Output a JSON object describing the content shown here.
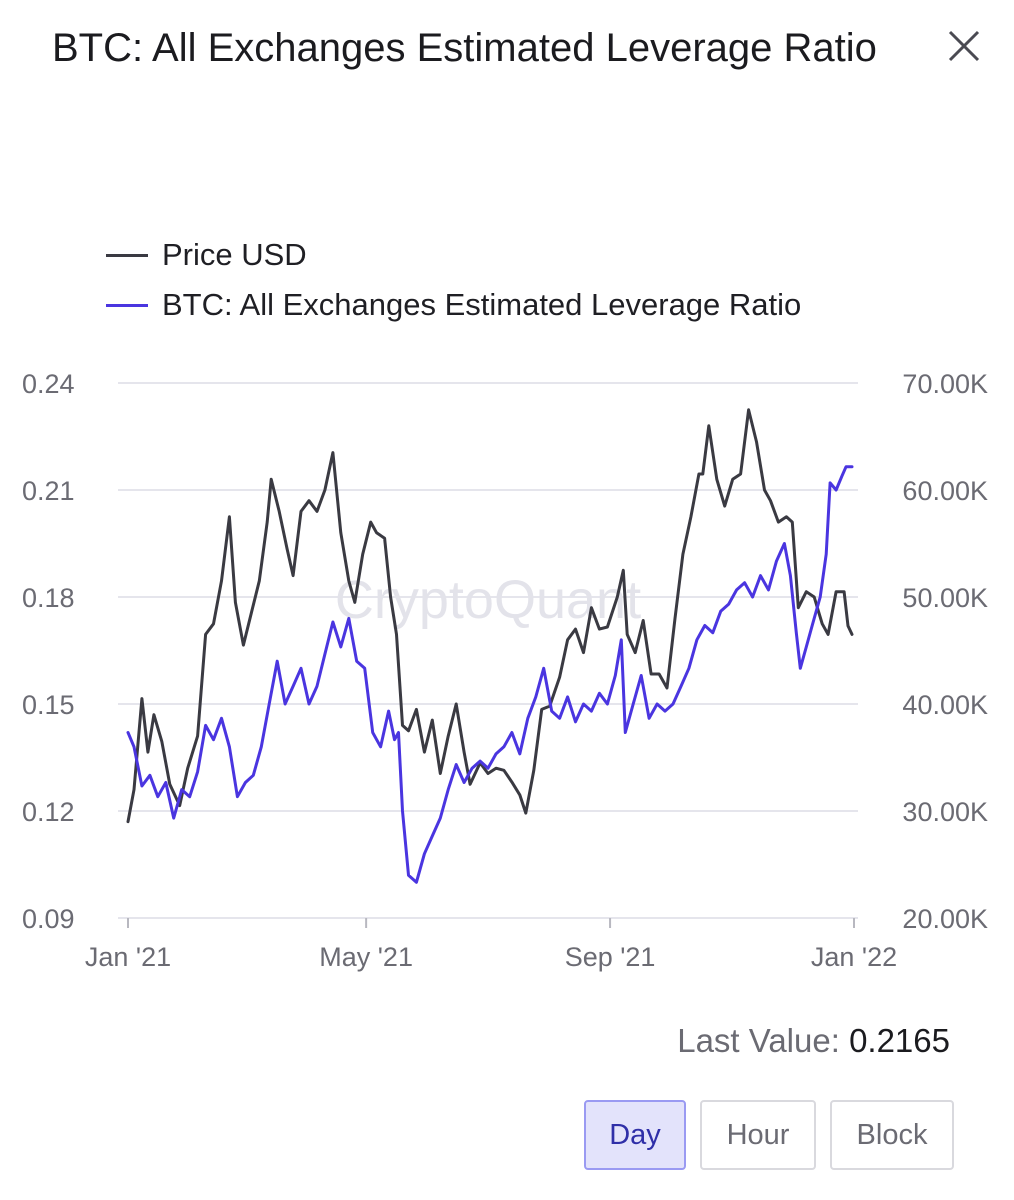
{
  "header": {
    "title": "BTC: All Exchanges Estimated Leverage Ratio",
    "close_icon": "close-icon"
  },
  "colors": {
    "price": "#3a3a42",
    "leverage": "#4a35e0",
    "grid": "#e5e5ec",
    "axis_text": "#6b6b73"
  },
  "legend": {
    "items": [
      {
        "label": "Price USD",
        "color": "#3a3a42"
      },
      {
        "label": "BTC: All Exchanges Estimated Leverage Ratio",
        "color": "#4a35e0"
      }
    ]
  },
  "watermark": "CryptoQuant",
  "chart_data": {
    "type": "line",
    "x_ticks": [
      "Jan '21",
      "May '21",
      "Sep '21",
      "Jan '22"
    ],
    "x_range": [
      "2021-01-01",
      "2022-01-01"
    ],
    "y_left": {
      "min": 0.09,
      "max": 0.24,
      "ticks": [
        "0.24",
        "0.21",
        "0.18",
        "0.15",
        "0.12",
        "0.09"
      ]
    },
    "y_right": {
      "min": 20000,
      "max": 70000,
      "ticks": [
        "70.00K",
        "60.00K",
        "50.00K",
        "40.00K",
        "30.00K",
        "20.00K"
      ]
    },
    "grid": true,
    "legend_position": "top-left",
    "series": [
      {
        "name": "Price USD",
        "axis": "right",
        "points": [
          [
            "2021-01-01",
            29000
          ],
          [
            "2021-01-04",
            32000
          ],
          [
            "2021-01-08",
            40500
          ],
          [
            "2021-01-11",
            35500
          ],
          [
            "2021-01-14",
            39000
          ],
          [
            "2021-01-18",
            36500
          ],
          [
            "2021-01-22",
            32500
          ],
          [
            "2021-01-27",
            30500
          ],
          [
            "2021-01-31",
            34000
          ],
          [
            "2021-02-05",
            37000
          ],
          [
            "2021-02-09",
            46500
          ],
          [
            "2021-02-13",
            47500
          ],
          [
            "2021-02-17",
            51500
          ],
          [
            "2021-02-21",
            57500
          ],
          [
            "2021-02-24",
            49500
          ],
          [
            "2021-02-28",
            45500
          ],
          [
            "2021-03-04",
            48500
          ],
          [
            "2021-03-08",
            51500
          ],
          [
            "2021-03-12",
            57000
          ],
          [
            "2021-03-14",
            61000
          ],
          [
            "2021-03-18",
            58000
          ],
          [
            "2021-03-22",
            54500
          ],
          [
            "2021-03-25",
            52000
          ],
          [
            "2021-03-29",
            58000
          ],
          [
            "2021-04-02",
            59000
          ],
          [
            "2021-04-06",
            58000
          ],
          [
            "2021-04-10",
            60000
          ],
          [
            "2021-04-14",
            63500
          ],
          [
            "2021-04-18",
            56000
          ],
          [
            "2021-04-22",
            51500
          ],
          [
            "2021-04-25",
            49500
          ],
          [
            "2021-04-29",
            54000
          ],
          [
            "2021-05-03",
            57000
          ],
          [
            "2021-05-06",
            56000
          ],
          [
            "2021-05-10",
            55500
          ],
          [
            "2021-05-13",
            50000
          ],
          [
            "2021-05-16",
            46500
          ],
          [
            "2021-05-19",
            38000
          ],
          [
            "2021-05-22",
            37500
          ],
          [
            "2021-05-26",
            39500
          ],
          [
            "2021-05-30",
            35500
          ],
          [
            "2021-06-03",
            38500
          ],
          [
            "2021-06-07",
            33500
          ],
          [
            "2021-06-11",
            37000
          ],
          [
            "2021-06-15",
            40000
          ],
          [
            "2021-06-19",
            35500
          ],
          [
            "2021-06-22",
            32500
          ],
          [
            "2021-06-27",
            34500
          ],
          [
            "2021-07-01",
            33500
          ],
          [
            "2021-07-05",
            34000
          ],
          [
            "2021-07-09",
            33800
          ],
          [
            "2021-07-13",
            32700
          ],
          [
            "2021-07-17",
            31500
          ],
          [
            "2021-07-20",
            29800
          ],
          [
            "2021-07-24",
            33800
          ],
          [
            "2021-07-28",
            39500
          ],
          [
            "2021-08-01",
            39800
          ],
          [
            "2021-08-06",
            42500
          ],
          [
            "2021-08-10",
            46000
          ],
          [
            "2021-08-14",
            47000
          ],
          [
            "2021-08-18",
            44800
          ],
          [
            "2021-08-22",
            49000
          ],
          [
            "2021-08-26",
            47000
          ],
          [
            "2021-08-30",
            47200
          ],
          [
            "2021-09-04",
            50000
          ],
          [
            "2021-09-07",
            52500
          ],
          [
            "2021-09-09",
            46500
          ],
          [
            "2021-09-13",
            44800
          ],
          [
            "2021-09-17",
            47800
          ],
          [
            "2021-09-21",
            42800
          ],
          [
            "2021-09-25",
            42800
          ],
          [
            "2021-09-29",
            41500
          ],
          [
            "2021-10-03",
            48000
          ],
          [
            "2021-10-07",
            54000
          ],
          [
            "2021-10-11",
            57500
          ],
          [
            "2021-10-15",
            61500
          ],
          [
            "2021-10-17",
            61500
          ],
          [
            "2021-10-20",
            66000
          ],
          [
            "2021-10-24",
            61000
          ],
          [
            "2021-10-28",
            58500
          ],
          [
            "2021-11-01",
            61000
          ],
          [
            "2021-11-05",
            61500
          ],
          [
            "2021-11-09",
            67500
          ],
          [
            "2021-11-13",
            64500
          ],
          [
            "2021-11-17",
            60000
          ],
          [
            "2021-11-20",
            59000
          ],
          [
            "2021-11-24",
            57000
          ],
          [
            "2021-11-28",
            57500
          ],
          [
            "2021-12-01",
            57000
          ],
          [
            "2021-12-04",
            49000
          ],
          [
            "2021-12-08",
            50500
          ],
          [
            "2021-12-12",
            50000
          ],
          [
            "2021-12-16",
            47500
          ],
          [
            "2021-12-19",
            46500
          ],
          [
            "2021-12-23",
            50500
          ],
          [
            "2021-12-27",
            50500
          ],
          [
            "2021-12-29",
            47300
          ],
          [
            "2021-12-31",
            46500
          ]
        ]
      },
      {
        "name": "BTC: All Exchanges Estimated Leverage Ratio",
        "axis": "left",
        "points": [
          [
            "2021-01-01",
            0.142
          ],
          [
            "2021-01-04",
            0.138
          ],
          [
            "2021-01-08",
            0.127
          ],
          [
            "2021-01-12",
            0.13
          ],
          [
            "2021-01-16",
            0.124
          ],
          [
            "2021-01-20",
            0.128
          ],
          [
            "2021-01-24",
            0.118
          ],
          [
            "2021-01-28",
            0.126
          ],
          [
            "2021-02-01",
            0.124
          ],
          [
            "2021-02-05",
            0.131
          ],
          [
            "2021-02-09",
            0.144
          ],
          [
            "2021-02-13",
            0.14
          ],
          [
            "2021-02-17",
            0.146
          ],
          [
            "2021-02-21",
            0.138
          ],
          [
            "2021-02-25",
            0.124
          ],
          [
            "2021-03-01",
            0.128
          ],
          [
            "2021-03-05",
            0.13
          ],
          [
            "2021-03-09",
            0.138
          ],
          [
            "2021-03-13",
            0.15
          ],
          [
            "2021-03-17",
            0.162
          ],
          [
            "2021-03-21",
            0.15
          ],
          [
            "2021-03-25",
            0.155
          ],
          [
            "2021-03-29",
            0.16
          ],
          [
            "2021-04-02",
            0.15
          ],
          [
            "2021-04-06",
            0.155
          ],
          [
            "2021-04-10",
            0.164
          ],
          [
            "2021-04-14",
            0.173
          ],
          [
            "2021-04-18",
            0.166
          ],
          [
            "2021-04-22",
            0.174
          ],
          [
            "2021-04-26",
            0.162
          ],
          [
            "2021-04-30",
            0.16
          ],
          [
            "2021-05-04",
            0.142
          ],
          [
            "2021-05-08",
            0.138
          ],
          [
            "2021-05-12",
            0.148
          ],
          [
            "2021-05-15",
            0.14
          ],
          [
            "2021-05-17",
            0.142
          ],
          [
            "2021-05-19",
            0.12
          ],
          [
            "2021-05-22",
            0.102
          ],
          [
            "2021-05-26",
            0.1
          ],
          [
            "2021-05-30",
            0.108
          ],
          [
            "2021-06-03",
            0.113
          ],
          [
            "2021-06-07",
            0.118
          ],
          [
            "2021-06-11",
            0.126
          ],
          [
            "2021-06-15",
            0.133
          ],
          [
            "2021-06-19",
            0.128
          ],
          [
            "2021-06-23",
            0.132
          ],
          [
            "2021-06-27",
            0.134
          ],
          [
            "2021-07-01",
            0.132
          ],
          [
            "2021-07-05",
            0.136
          ],
          [
            "2021-07-09",
            0.138
          ],
          [
            "2021-07-13",
            0.142
          ],
          [
            "2021-07-17",
            0.136
          ],
          [
            "2021-07-21",
            0.146
          ],
          [
            "2021-07-25",
            0.152
          ],
          [
            "2021-07-29",
            0.16
          ],
          [
            "2021-08-02",
            0.148
          ],
          [
            "2021-08-06",
            0.146
          ],
          [
            "2021-08-10",
            0.152
          ],
          [
            "2021-08-14",
            0.145
          ],
          [
            "2021-08-18",
            0.15
          ],
          [
            "2021-08-22",
            0.148
          ],
          [
            "2021-08-26",
            0.153
          ],
          [
            "2021-08-30",
            0.15
          ],
          [
            "2021-09-03",
            0.158
          ],
          [
            "2021-09-06",
            0.168
          ],
          [
            "2021-09-08",
            0.142
          ],
          [
            "2021-09-12",
            0.15
          ],
          [
            "2021-09-16",
            0.158
          ],
          [
            "2021-09-20",
            0.146
          ],
          [
            "2021-09-24",
            0.15
          ],
          [
            "2021-09-28",
            0.148
          ],
          [
            "2021-10-02",
            0.15
          ],
          [
            "2021-10-06",
            0.155
          ],
          [
            "2021-10-10",
            0.16
          ],
          [
            "2021-10-14",
            0.168
          ],
          [
            "2021-10-18",
            0.172
          ],
          [
            "2021-10-22",
            0.17
          ],
          [
            "2021-10-26",
            0.176
          ],
          [
            "2021-10-30",
            0.178
          ],
          [
            "2021-11-03",
            0.182
          ],
          [
            "2021-11-07",
            0.184
          ],
          [
            "2021-11-11",
            0.18
          ],
          [
            "2021-11-15",
            0.186
          ],
          [
            "2021-11-19",
            0.182
          ],
          [
            "2021-11-23",
            0.19
          ],
          [
            "2021-11-27",
            0.195
          ],
          [
            "2021-11-30",
            0.186
          ],
          [
            "2021-12-03",
            0.17
          ],
          [
            "2021-12-05",
            0.16
          ],
          [
            "2021-12-08",
            0.166
          ],
          [
            "2021-12-11",
            0.172
          ],
          [
            "2021-12-15",
            0.18
          ],
          [
            "2021-12-18",
            0.192
          ],
          [
            "2021-12-20",
            0.212
          ],
          [
            "2021-12-23",
            0.21
          ],
          [
            "2021-12-26",
            0.214
          ],
          [
            "2021-12-28",
            0.2165
          ],
          [
            "2021-12-31",
            0.2165
          ]
        ]
      }
    ]
  },
  "last_value": {
    "label": "Last Value:",
    "value": "0.2165"
  },
  "intervals": [
    {
      "label": "Day",
      "active": true
    },
    {
      "label": "Hour",
      "active": false
    },
    {
      "label": "Block",
      "active": false
    }
  ]
}
